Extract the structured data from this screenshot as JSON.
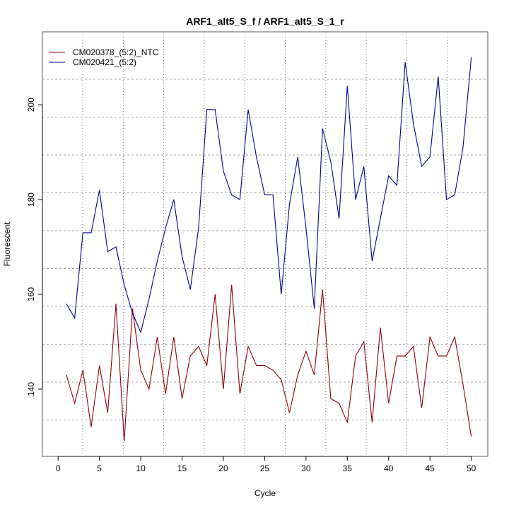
{
  "chart_data": {
    "type": "line",
    "title": "ARF1_alt5_S_f / ARF1_alt5_S_1_r",
    "xlabel": "Cycle",
    "ylabel": "Fluorescent",
    "xlim": [
      -1.9,
      52
    ],
    "ylim": [
      125.8,
      215.4
    ],
    "xticks": [
      0,
      5,
      10,
      15,
      20,
      25,
      30,
      35,
      40,
      45,
      50
    ],
    "yticks": [
      140,
      160,
      180,
      200
    ],
    "grid": true,
    "legend_position": "top-left",
    "x": [
      1,
      2,
      3,
      4,
      5,
      6,
      7,
      8,
      9,
      10,
      11,
      12,
      13,
      14,
      15,
      16,
      17,
      18,
      19,
      20,
      21,
      22,
      23,
      24,
      25,
      26,
      27,
      28,
      29,
      30,
      31,
      32,
      33,
      34,
      35,
      36,
      37,
      38,
      39,
      40,
      41,
      42,
      43,
      44,
      45,
      46,
      47,
      48,
      49,
      50
    ],
    "series": [
      {
        "name": "CM020378_(5:2)_NTC",
        "color": "#8b0000",
        "values": [
          143,
          137,
          144,
          132,
          145,
          135,
          158,
          129,
          157,
          144,
          140,
          151,
          139,
          151,
          138,
          147,
          149,
          145,
          160,
          140,
          162,
          139,
          149,
          145,
          145,
          144,
          142,
          135,
          143,
          148,
          143,
          161,
          138,
          137,
          133,
          147,
          150,
          133,
          153,
          137,
          147,
          147,
          149,
          136,
          151,
          147,
          147,
          151,
          141,
          130
        ]
      },
      {
        "name": "CM020421_(5:2)",
        "color": "#00008b",
        "values": [
          158,
          155,
          173,
          173,
          182,
          169,
          170,
          162,
          156,
          152,
          159,
          167,
          174,
          180,
          168,
          161,
          174,
          199,
          199,
          186,
          181,
          180,
          199,
          189,
          181,
          181,
          160,
          179,
          189,
          174,
          157,
          195,
          188,
          176,
          204,
          180,
          187,
          167,
          176,
          185,
          183,
          209,
          196,
          187,
          189,
          206,
          180,
          181,
          191,
          210
        ]
      }
    ]
  }
}
